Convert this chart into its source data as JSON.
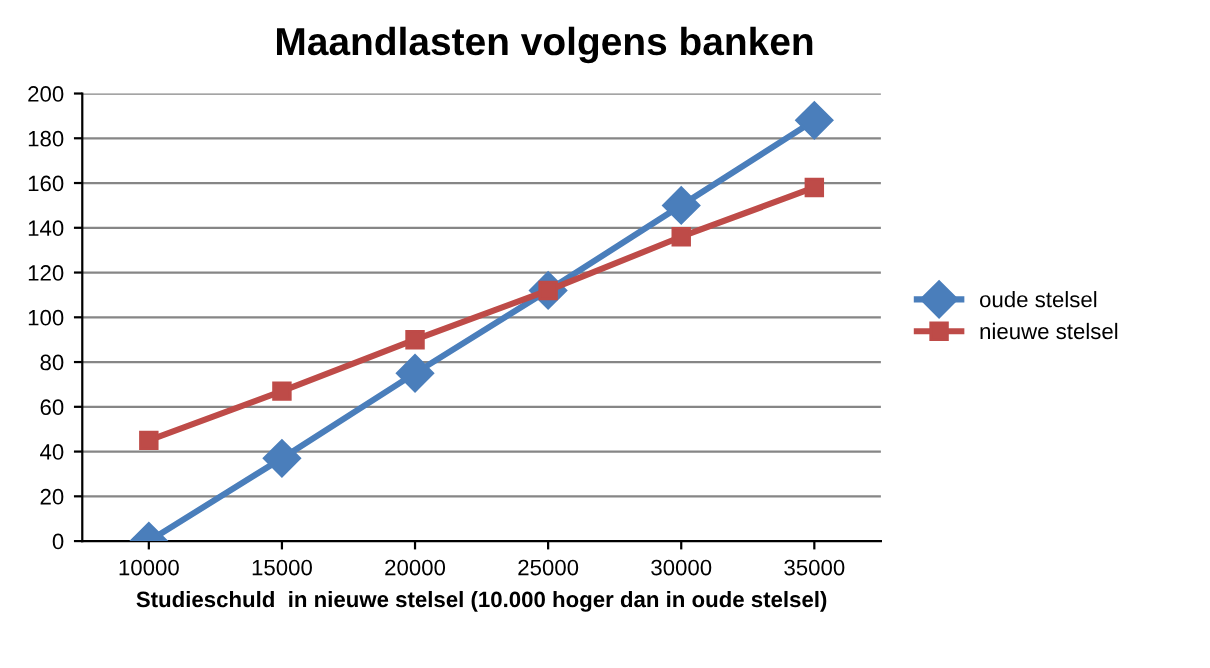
{
  "chart_data": {
    "type": "line",
    "title": "Maandlasten volgens banken",
    "xlabel": "Studieschuld  in nieuwe stelsel (10.000 hoger dan in oude stelsel)",
    "categories": [
      "10000",
      "15000",
      "20000",
      "25000",
      "30000",
      "35000"
    ],
    "series": [
      {
        "name": "oude stelsel",
        "color": "#4a7ebb",
        "marker": "diamond",
        "values": [
          0,
          37,
          75,
          112,
          150,
          188
        ]
      },
      {
        "name": "nieuwe stelsel",
        "color": "#be4b48",
        "marker": "square",
        "values": [
          45,
          67,
          90,
          112,
          136,
          158
        ]
      }
    ],
    "ylim": [
      0,
      200
    ],
    "yticks": [
      0,
      20,
      40,
      60,
      80,
      100,
      120,
      140,
      160,
      180,
      200
    ],
    "grid": "y",
    "legend": "right",
    "line_style": "solid"
  }
}
